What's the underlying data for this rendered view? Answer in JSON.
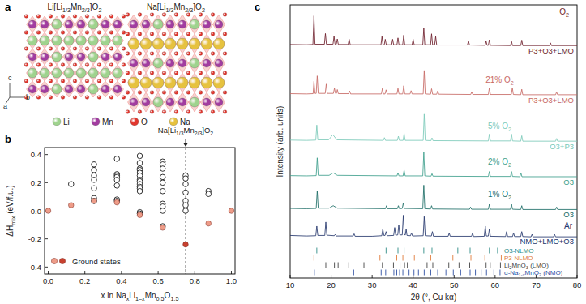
{
  "panel_labels": [
    "a",
    "b",
    "c"
  ],
  "structures": {
    "titles": [
      "Li[Li1/3Mn2/3]O2",
      "Na[Li1/3Mn2/3]O2"
    ],
    "legend": [
      {
        "symbol": "Li",
        "color": "#9fd38e"
      },
      {
        "symbol": "Mn",
        "color": "#a23ca0"
      },
      {
        "symbol": "O",
        "color": "#e2372e"
      },
      {
        "symbol": "Na",
        "color": "#e6c23f"
      }
    ],
    "axes": [
      "a",
      "b",
      "c"
    ]
  },
  "chart_data": [
    {
      "type": "scatter",
      "x_label": "x in NaxLi1–xMn0.5O1.5",
      "y_label": "ΔHmix (eV/f.u.)",
      "xlim": [
        -0.02,
        1.02
      ],
      "ylim": [
        -0.45,
        0.45
      ],
      "xticks": [
        {
          "value": 0,
          "label": "0.0"
        },
        {
          "value": 0.2,
          "label": "0.2"
        },
        {
          "value": 0.4,
          "label": "0.4"
        },
        {
          "value": 0.6,
          "label": "0.6"
        },
        {
          "value": 0.8,
          "label": "0.8"
        },
        {
          "value": 1,
          "label": "1.0"
        }
      ],
      "yticks": [
        {
          "value": -0.4,
          "label": "-0.4"
        },
        {
          "value": -0.2,
          "label": "-0.2"
        },
        {
          "value": 0,
          "label": "0.0"
        },
        {
          "value": 0.2,
          "label": "0.2"
        },
        {
          "value": 0.4,
          "label": "0.4"
        }
      ],
      "legend": "lower left",
      "series": [
        {
          "marker": "open",
          "color": "#000000",
          "x": [
            0.125,
            0.25,
            0.25,
            0.25,
            0.25,
            0.25,
            0.25,
            0.25,
            0.375,
            0.375,
            0.375,
            0.375,
            0.375,
            0.375,
            0.375,
            0.375,
            0.5,
            0.5,
            0.5,
            0.5,
            0.5,
            0.5,
            0.5,
            0.5,
            0.5,
            0.5,
            0.5,
            0.5,
            0.5,
            0.5,
            0.625,
            0.625,
            0.625,
            0.625,
            0.625,
            0.625,
            0.625,
            0.625,
            0.625,
            0.625,
            0.75,
            0.75,
            0.75,
            0.75,
            0.75,
            0.75,
            0.75,
            0.875,
            0.875
          ],
          "values": [
            0.19,
            0.33,
            0.29,
            0.25,
            0.22,
            0.16,
            0.09,
            0.07,
            0.37,
            0.26,
            0.25,
            0.24,
            0.22,
            0.18,
            0.08,
            0.07,
            0.39,
            0.34,
            0.3,
            0.29,
            0.27,
            0.25,
            0.22,
            0.21,
            0.19,
            0.17,
            0.16,
            0.14,
            -0.01,
            -0.02,
            0.35,
            0.33,
            0.3,
            0.24,
            0.2,
            0.14,
            0.05,
            0.03,
            0.0,
            -0.11,
            0.25,
            0.23,
            0.19,
            0.13,
            0.07,
            0.04,
            0.0,
            0.14,
            0.12
          ]
        },
        {
          "name": "Ground states",
          "marker": "filled",
          "x": [
            0,
            0.125,
            0.25,
            0.375,
            0.5,
            0.625,
            0.75,
            0.875,
            1
          ],
          "values": [
            0,
            0.04,
            0.07,
            0.06,
            -0.03,
            -0.12,
            -0.24,
            -0.09,
            0
          ],
          "colors": [
            "#ee9c88",
            "#ee9c88",
            "#ee9c88",
            "#ee9c88",
            "#ee9c88",
            "#ee9c88",
            "#c8412f",
            "#ee9c88",
            "#ee9c88"
          ]
        }
      ],
      "annotations": [
        {
          "text": "Na[Li1/3Mn2/3]O2",
          "x": 0.75,
          "line_style": "dashed"
        }
      ]
    },
    {
      "type": "line",
      "x_label": "2θ (°, Cu kα)",
      "y_label": "Intensity (arb. units)",
      "xlim": [
        10,
        80
      ],
      "ylim": [
        0,
        100
      ],
      "xticks": [
        10,
        20,
        30,
        40,
        50,
        60,
        70,
        80
      ],
      "tick_labels": "x",
      "series": [
        {
          "name": "O2",
          "label": "P3+O3+LMO",
          "color": "#6e1f2c",
          "x": [
            10,
            14,
            15.55,
            15.8,
            16.05,
            18.35,
            18.6,
            18.85,
            20.45,
            20.7,
            20.95,
            21.25,
            21.5,
            21.75,
            24.15,
            24.4,
            24.65,
            32.15,
            32.4,
            32.65,
            32.95,
            33.2,
            33.45,
            34.75,
            35.0,
            35.25,
            36.05,
            36.3,
            36.55,
            37.45,
            37.7,
            37.95,
            39.75,
            40.0,
            40.25,
            42.35,
            42.6,
            42.85,
            44.25,
            44.5,
            44.75,
            45.25,
            45.5,
            45.75,
            53.25,
            53.5,
            53.75,
            57.55,
            57.8,
            58.05,
            58.35,
            58.6,
            58.85,
            63.75,
            64.0,
            64.25,
            66.25,
            66.5,
            66.75,
            73.25,
            73.5,
            73.75,
            80
          ],
          "values": [
            85.5,
            85.4,
            85.5,
            96,
            85.6,
            85.6,
            89.5,
            85.6,
            85.6,
            88.5,
            85.6,
            85.6,
            87.5,
            85.5,
            85.5,
            87.4,
            85.4,
            85.4,
            88.4,
            85.4,
            85.4,
            87.4,
            85.4,
            85.4,
            87.4,
            85.4,
            85.4,
            87.9,
            85.4,
            85.4,
            88.9,
            85.4,
            85.4,
            87.4,
            85.4,
            85.4,
            91.4,
            85.4,
            85.4,
            89.4,
            85.4,
            85.4,
            88.4,
            85.3,
            85.3,
            86.8,
            85.3,
            85.2,
            86.7,
            85.2,
            85.2,
            87.2,
            85.2,
            85.1,
            86.6,
            85.1,
            85.1,
            87.1,
            85.1,
            85.1,
            86.1,
            85.1,
            85.1
          ]
        },
        {
          "name": "21% O2",
          "label": "P3+O3+LMO",
          "color": "#c86a66",
          "x": [
            10,
            14,
            15.6,
            15.8,
            16.05,
            16.35,
            16.6,
            16.85,
            18.55,
            18.8,
            19.05,
            20.55,
            20.8,
            21.05,
            21.3,
            21.5,
            21.75,
            24.25,
            24.5,
            24.75,
            32.25,
            32.5,
            32.75,
            33.15,
            33.4,
            33.65,
            36.05,
            36.3,
            36.55,
            37.45,
            37.7,
            37.95,
            39.25,
            39.5,
            39.75,
            42.45,
            42.7,
            42.95,
            44.25,
            44.5,
            44.75,
            45.75,
            46.0,
            46.25,
            54.05,
            54.3,
            54.55,
            58.35,
            58.6,
            58.85,
            63.95,
            64.2,
            64.45,
            66.25,
            66.5,
            66.75,
            74.75,
            75.0,
            75.25,
            80
          ],
          "values": [
            67.5,
            67.4,
            67.5,
            72,
            67.6,
            67.6,
            74,
            67.6,
            67.6,
            71,
            67.6,
            67.6,
            69.5,
            67.6,
            67.6,
            69,
            67.5,
            67.5,
            68.5,
            67.4,
            67.4,
            69.4,
            67.4,
            67.4,
            68.9,
            67.4,
            67.4,
            69.4,
            67.4,
            67.4,
            70.4,
            67.4,
            67.4,
            68.6,
            67.4,
            67.4,
            76,
            67.4,
            67.3,
            69.3,
            67.3,
            67.3,
            68.5,
            67.3,
            67.2,
            68.2,
            67.2,
            67.2,
            69.7,
            67.2,
            67.2,
            69.7,
            67.2,
            67.1,
            69.1,
            67.1,
            67.1,
            68.1,
            67.1,
            67.1
          ]
        },
        {
          "name": "5% O2",
          "label": "O3+P3",
          "color": "#7ccab9",
          "x": [
            10,
            14,
            16.25,
            16.5,
            16.75,
            19.4,
            20.4,
            21.4,
            32.75,
            33.0,
            33.25,
            36.15,
            36.4,
            36.65,
            37.55,
            37.8,
            38.05,
            42.45,
            42.7,
            42.95,
            44.35,
            44.6,
            44.85,
            58.35,
            58.6,
            58.85,
            63.75,
            64.0,
            64.25,
            66.25,
            66.5,
            66.75,
            74.75,
            75.0,
            75.25,
            80
          ],
          "values": [
            50.5,
            50.4,
            50.5,
            56,
            50.6,
            50.6,
            52.5,
            50.6,
            50.4,
            51.4,
            50.4,
            50.4,
            51.9,
            50.4,
            50.4,
            52.9,
            50.4,
            50.4,
            60,
            50.4,
            50.3,
            51.3,
            50.3,
            50.2,
            52.7,
            50.2,
            50.2,
            52.7,
            50.2,
            50.1,
            52.1,
            50.1,
            50.1,
            51.1,
            50.1,
            50.1
          ]
        },
        {
          "name": "2% O2",
          "label": "O3",
          "color": "#3f9f8c",
          "x": [
            10,
            14,
            16.35,
            16.6,
            16.85,
            19.5,
            20.5,
            21.5,
            36.05,
            36.3,
            36.55,
            37.55,
            37.8,
            38.05,
            42.35,
            42.6,
            42.85,
            44.35,
            44.6,
            44.85,
            58.35,
            58.6,
            58.85,
            63.75,
            64.0,
            64.25,
            66.05,
            66.3,
            66.55,
            80
          ],
          "values": [
            37.5,
            37.4,
            37.5,
            44,
            37.6,
            37.6,
            38.5,
            37.6,
            37.4,
            38.5,
            37.4,
            37.4,
            39.5,
            37.4,
            37.4,
            46,
            37.4,
            37.3,
            38.2,
            37.3,
            37.2,
            39,
            37.2,
            37.2,
            39,
            37.2,
            37.1,
            38.5,
            37.1,
            37.1
          ]
        },
        {
          "name": "1% O2",
          "label": "O3",
          "color": "#1e6e67",
          "x": [
            10,
            14,
            16.35,
            16.6,
            16.85,
            19.5,
            20.5,
            21.5,
            33.25,
            33.5,
            33.75,
            36.15,
            36.4,
            36.65,
            37.35,
            37.6,
            37.85,
            42.35,
            42.6,
            42.85,
            44.25,
            44.5,
            44.75,
            53.75,
            54.0,
            54.25,
            58.35,
            58.6,
            58.85,
            63.75,
            64.0,
            64.25,
            66.25,
            66.5,
            66.75,
            74.75,
            75.0,
            75.25,
            80
          ],
          "values": [
            25.5,
            25.4,
            25.5,
            32,
            25.6,
            25.6,
            26.5,
            25.6,
            25.4,
            26.5,
            25.4,
            25.4,
            26.5,
            25.4,
            25.5,
            27.5,
            25.5,
            25.4,
            34,
            25.4,
            25.3,
            26.5,
            25.3,
            25.2,
            26,
            25.2,
            25.2,
            27,
            25.2,
            25.2,
            27,
            25.2,
            25.1,
            26.5,
            25.1,
            25.1,
            26,
            25.1,
            25.1
          ]
        },
        {
          "name": "Ar",
          "label": "NMO+LMO+O3",
          "color": "#27396e",
          "x": [
            10,
            14,
            16.25,
            16.5,
            16.75,
            18.45,
            18.7,
            18.95,
            20.75,
            21.0,
            21.25,
            25.35,
            25.6,
            25.85,
            30,
            32.35,
            32.6,
            32.85,
            33.15,
            33.4,
            33.65,
            35.25,
            35.5,
            35.75,
            36.25,
            36.5,
            36.75,
            37.35,
            37.6,
            37.85,
            38.1,
            38.3,
            38.5,
            39.35,
            39.6,
            39.85,
            42.45,
            42.7,
            42.95,
            44.45,
            44.7,
            44.95,
            48.55,
            48.8,
            49.05,
            54.25,
            54.5,
            54.75,
            57.35,
            57.6,
            57.85,
            58.35,
            58.6,
            58.85,
            62.55,
            62.8,
            63.05,
            64.25,
            64.5,
            64.75,
            66.25,
            66.5,
            66.75,
            68.75,
            69.0,
            69.25,
            74.25,
            74.5,
            74.75,
            80
          ],
          "values": [
            15.6,
            15.4,
            15.5,
            19,
            15.6,
            15.6,
            20.5,
            15.7,
            15.5,
            16,
            15.4,
            15.4,
            16.2,
            15.3,
            15.3,
            15.5,
            18,
            15.6,
            15.6,
            17,
            15.5,
            15.6,
            18.5,
            15.7,
            15.8,
            19.5,
            15.8,
            15.8,
            23,
            15.9,
            15.8,
            18,
            15.6,
            15.5,
            16.5,
            15.4,
            15.5,
            22.5,
            15.5,
            15.4,
            17,
            15.3,
            15.3,
            16.5,
            15.3,
            15.3,
            16.5,
            15.2,
            15.3,
            19,
            15.4,
            15.4,
            18,
            15.3,
            15.2,
            17,
            15.2,
            15.2,
            16.5,
            15.2,
            15.2,
            17,
            15.2,
            15.1,
            16,
            15.1,
            15.1,
            16,
            15.1,
            15.1
          ]
        }
      ],
      "references": [
        {
          "name": "O3-NLMO",
          "color": "#2e8b86",
          "positions": [
            16.5,
            33.4,
            36.3,
            37.8,
            42.6,
            44.6,
            50.9,
            53.9,
            58.6,
            60.6
          ]
        },
        {
          "name": "P3-NLMO",
          "color": "#e07b3a",
          "positions": [
            15.8,
            31.9,
            36.0,
            37.5,
            40.3,
            44.3,
            49.7,
            54.1,
            57.5,
            61.5
          ]
        },
        {
          "name": "Li2MnO3 (LMO)",
          "color": "#444444",
          "positions": [
            18.7,
            20.8,
            21.7,
            24.3,
            28.0,
            32.5,
            35.2,
            36.8,
            37.9,
            38.6,
            43.4,
            44.8,
            48.7,
            51.2,
            53.8,
            57.8,
            58.8,
            61.3
          ]
        },
        {
          "name": "α-Na1-xMnO2 (NMO)",
          "color": "#2e4fa3",
          "positions": [
            15.9,
            25.5,
            32.2,
            33.3,
            35.3,
            36.0,
            36.7,
            37.5,
            39.0,
            40.2,
            41.3,
            42.7,
            44.3,
            46.0,
            48.0,
            49.8,
            51.6,
            53.9,
            55.2,
            56.6,
            57.9,
            59.7,
            61.2
          ]
        }
      ]
    }
  ]
}
